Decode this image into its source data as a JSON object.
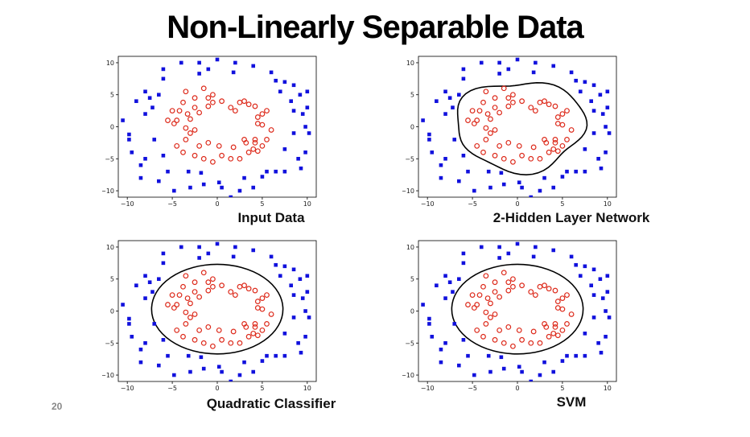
{
  "title": "Non-Linearly Separable Data",
  "page_number": "20",
  "colors": {
    "circle": "#dd2a1b",
    "square": "#1111dd",
    "boundary": "#000000",
    "frame": "#000000"
  },
  "chart_data": [
    {
      "type": "scatter",
      "caption": "Input Data",
      "boundary": "none",
      "xlim": [
        -11,
        11
      ],
      "ylim": [
        -11,
        11
      ],
      "xticks": [
        -10,
        -5,
        0,
        5,
        10
      ],
      "yticks": [
        -10,
        -5,
        0,
        5,
        10
      ],
      "grid": false
    },
    {
      "type": "scatter",
      "caption": "2-Hidden Layer Network",
      "boundary": "irregular",
      "xlim": [
        -11,
        11
      ],
      "ylim": [
        -11,
        11
      ],
      "xticks": [
        -10,
        -5,
        0,
        5,
        10
      ],
      "yticks": [
        -10,
        -5,
        0,
        5,
        10
      ],
      "grid": false
    },
    {
      "type": "scatter",
      "caption": "Quadratic Classifier",
      "boundary": "ellipse",
      "xlim": [
        -11,
        11
      ],
      "ylim": [
        -11,
        11
      ],
      "xticks": [
        -10,
        -5,
        0,
        5,
        10
      ],
      "yticks": [
        -10,
        -5,
        0,
        5,
        10
      ],
      "grid": false
    },
    {
      "type": "scatter",
      "caption": "SVM",
      "boundary": "ellipse",
      "xlim": [
        -11,
        11
      ],
      "ylim": [
        -11,
        11
      ],
      "xticks": [
        -10,
        -5,
        0,
        5,
        10
      ],
      "yticks": [
        -10,
        -5,
        0,
        5,
        10
      ],
      "grid": false
    }
  ],
  "points": {
    "circle": [
      [
        -3.5,
        5.5
      ],
      [
        -1.5,
        6
      ],
      [
        -0.5,
        5
      ],
      [
        -2.5,
        4.5
      ],
      [
        -3.8,
        3.8
      ],
      [
        -2.5,
        3
      ],
      [
        -3.3,
        2
      ],
      [
        -4.2,
        2.5
      ],
      [
        -5,
        2.5
      ],
      [
        -4.5,
        1
      ],
      [
        -3,
        1.2
      ],
      [
        -5.5,
        1
      ],
      [
        -4.8,
        0.5
      ],
      [
        -2.5,
        -0.5
      ],
      [
        -3.5,
        -0.2
      ],
      [
        -3,
        -1
      ],
      [
        -3.5,
        -2
      ],
      [
        -4.5,
        -3
      ],
      [
        -3.8,
        -4
      ],
      [
        -2.5,
        -4.5
      ],
      [
        -1.5,
        -5
      ],
      [
        -0.5,
        -5.5
      ],
      [
        0.5,
        -4.5
      ],
      [
        1.5,
        -5
      ],
      [
        2.5,
        -5
      ],
      [
        3.5,
        -4
      ],
      [
        4.5,
        -3.8
      ],
      [
        5,
        -3
      ],
      [
        4,
        -3.5
      ],
      [
        3.2,
        -2.5
      ],
      [
        4.2,
        -2.5
      ],
      [
        3,
        -2
      ],
      [
        4.2,
        -2
      ],
      [
        5.5,
        -2
      ],
      [
        6,
        -0.5
      ],
      [
        4.5,
        0.5
      ],
      [
        5,
        0.3
      ],
      [
        4.5,
        1.5
      ],
      [
        5,
        2
      ],
      [
        4.2,
        3.2
      ],
      [
        5.5,
        2.5
      ],
      [
        3.5,
        3.5
      ],
      [
        3,
        4
      ],
      [
        2.5,
        3.8
      ],
      [
        1.5,
        3
      ],
      [
        0.5,
        4
      ],
      [
        -1,
        3.2
      ],
      [
        -0.5,
        3.8
      ],
      [
        2,
        2.5
      ],
      [
        -2,
        2.2
      ],
      [
        -1,
        -2.5
      ],
      [
        0.2,
        -3
      ],
      [
        1.8,
        -3.2
      ],
      [
        -2,
        -3
      ],
      [
        -1,
        4.5
      ]
    ],
    "square": [
      [
        -8,
        5.5
      ],
      [
        -9,
        4
      ],
      [
        -9.8,
        -2
      ],
      [
        -9.5,
        -4
      ],
      [
        -8,
        -5
      ],
      [
        -8.5,
        -8
      ],
      [
        -6.5,
        -8.5
      ],
      [
        -4.8,
        -10
      ],
      [
        -3,
        -9.5
      ],
      [
        -1.5,
        -9
      ],
      [
        0.5,
        -9.5
      ],
      [
        2.5,
        -10
      ],
      [
        4,
        -9.5
      ],
      [
        6.5,
        -7
      ],
      [
        7.5,
        -7
      ],
      [
        9,
        -5
      ],
      [
        9.8,
        -4
      ],
      [
        10.2,
        -1
      ],
      [
        9.5,
        2
      ],
      [
        10,
        3
      ],
      [
        9.2,
        5
      ],
      [
        8.5,
        6.5
      ],
      [
        7.5,
        7
      ],
      [
        6,
        8.5
      ],
      [
        4,
        9.5
      ],
      [
        2,
        10
      ],
      [
        0,
        10.5
      ],
      [
        -2,
        10
      ],
      [
        -4,
        10
      ],
      [
        -6,
        9
      ],
      [
        -6.5,
        5
      ],
      [
        -7.2,
        3
      ],
      [
        -8,
        2
      ],
      [
        -7,
        -2
      ],
      [
        -6,
        -4.5
      ],
      [
        -3.2,
        -7
      ],
      [
        -1.8,
        -7.2
      ],
      [
        3,
        -8
      ],
      [
        5,
        -7.8
      ],
      [
        7.5,
        -3.5
      ],
      [
        8.5,
        -1
      ],
      [
        9.8,
        0
      ],
      [
        8.5,
        2.5
      ],
      [
        7,
        5.5
      ],
      [
        6.5,
        7.2
      ],
      [
        1.8,
        8.5
      ],
      [
        -1,
        9
      ],
      [
        -8.5,
        -6
      ],
      [
        1.5,
        -11
      ],
      [
        -10.5,
        1
      ],
      [
        -9.8,
        -1.2
      ],
      [
        -7.5,
        4.5
      ],
      [
        9.3,
        -6.5
      ],
      [
        -5.5,
        -7
      ],
      [
        0.2,
        -8.7
      ],
      [
        -6,
        7.5
      ],
      [
        -2,
        8.3
      ],
      [
        5.5,
        -7
      ],
      [
        10,
        5.5
      ],
      [
        8.2,
        4
      ]
    ]
  }
}
